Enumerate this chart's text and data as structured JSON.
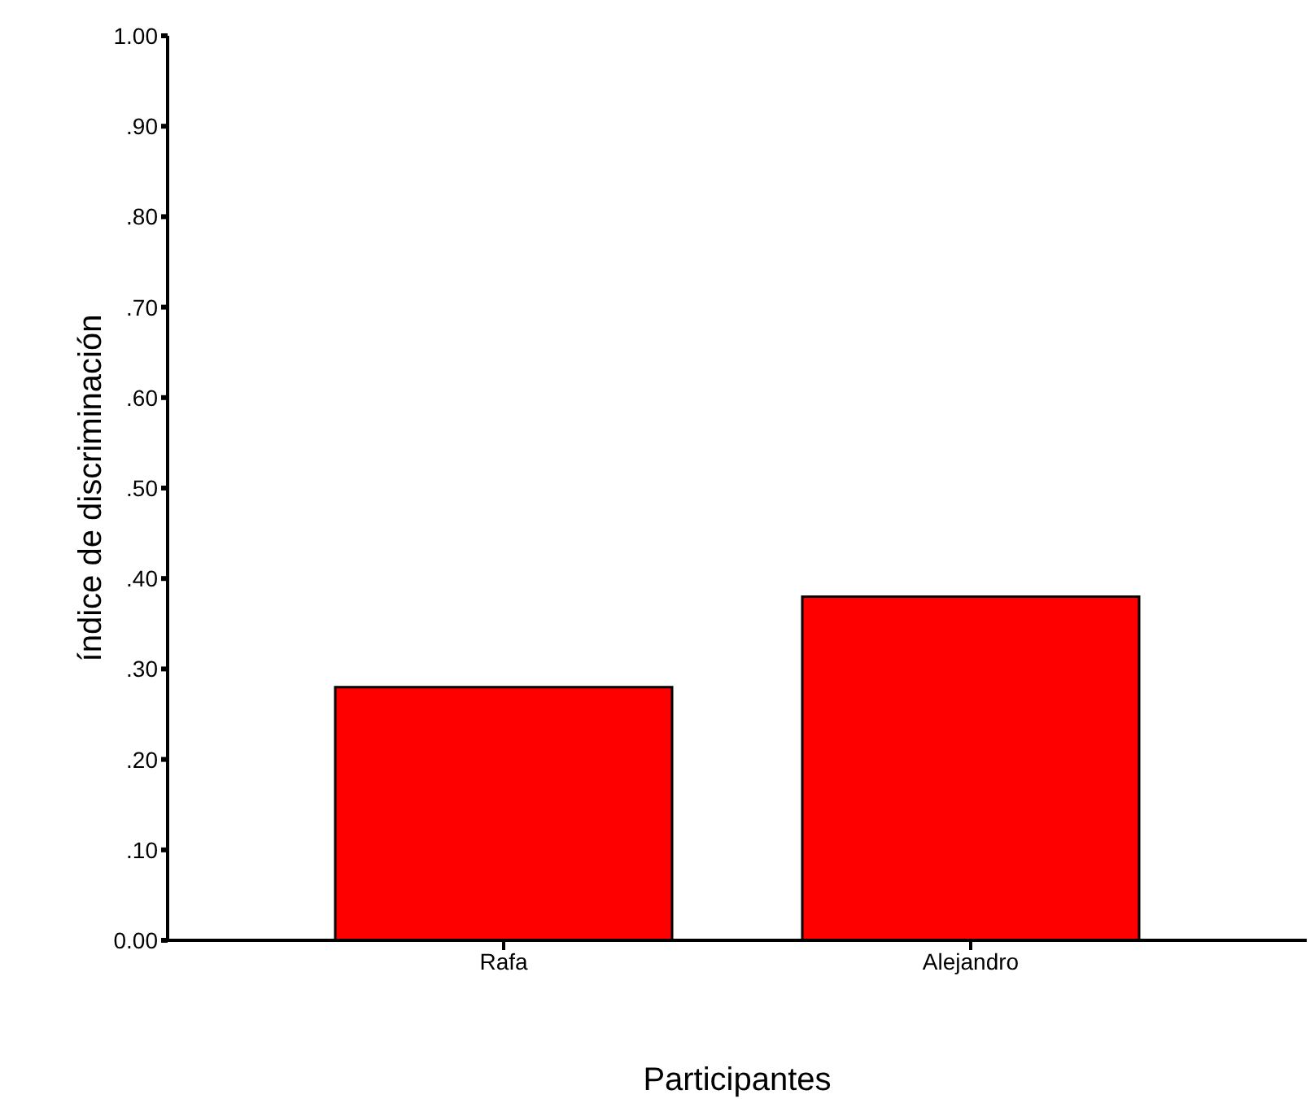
{
  "chart_data": {
    "type": "bar",
    "xlabel": "Participantes",
    "ylabel": "índice de discriminación",
    "categories": [
      "Rafa",
      "Alejandro"
    ],
    "values": [
      0.28,
      0.38
    ],
    "color": "#ff0000",
    "ylim": [
      0,
      1
    ],
    "yticks": [
      {
        "value": 0,
        "label": "0.00"
      },
      {
        "value": 0.1,
        "label": ".10"
      },
      {
        "value": 0.2,
        "label": ".20"
      },
      {
        "value": 0.3,
        "label": ".30"
      },
      {
        "value": 0.4,
        "label": ".40"
      },
      {
        "value": 0.5,
        "label": ".50"
      },
      {
        "value": 0.6,
        "label": ".60"
      },
      {
        "value": 0.7,
        "label": ".70"
      },
      {
        "value": 0.8,
        "label": ".80"
      },
      {
        "value": 0.9,
        "label": ".90"
      },
      {
        "value": 1,
        "label": "1.00"
      }
    ],
    "grid": false,
    "legend": false
  }
}
